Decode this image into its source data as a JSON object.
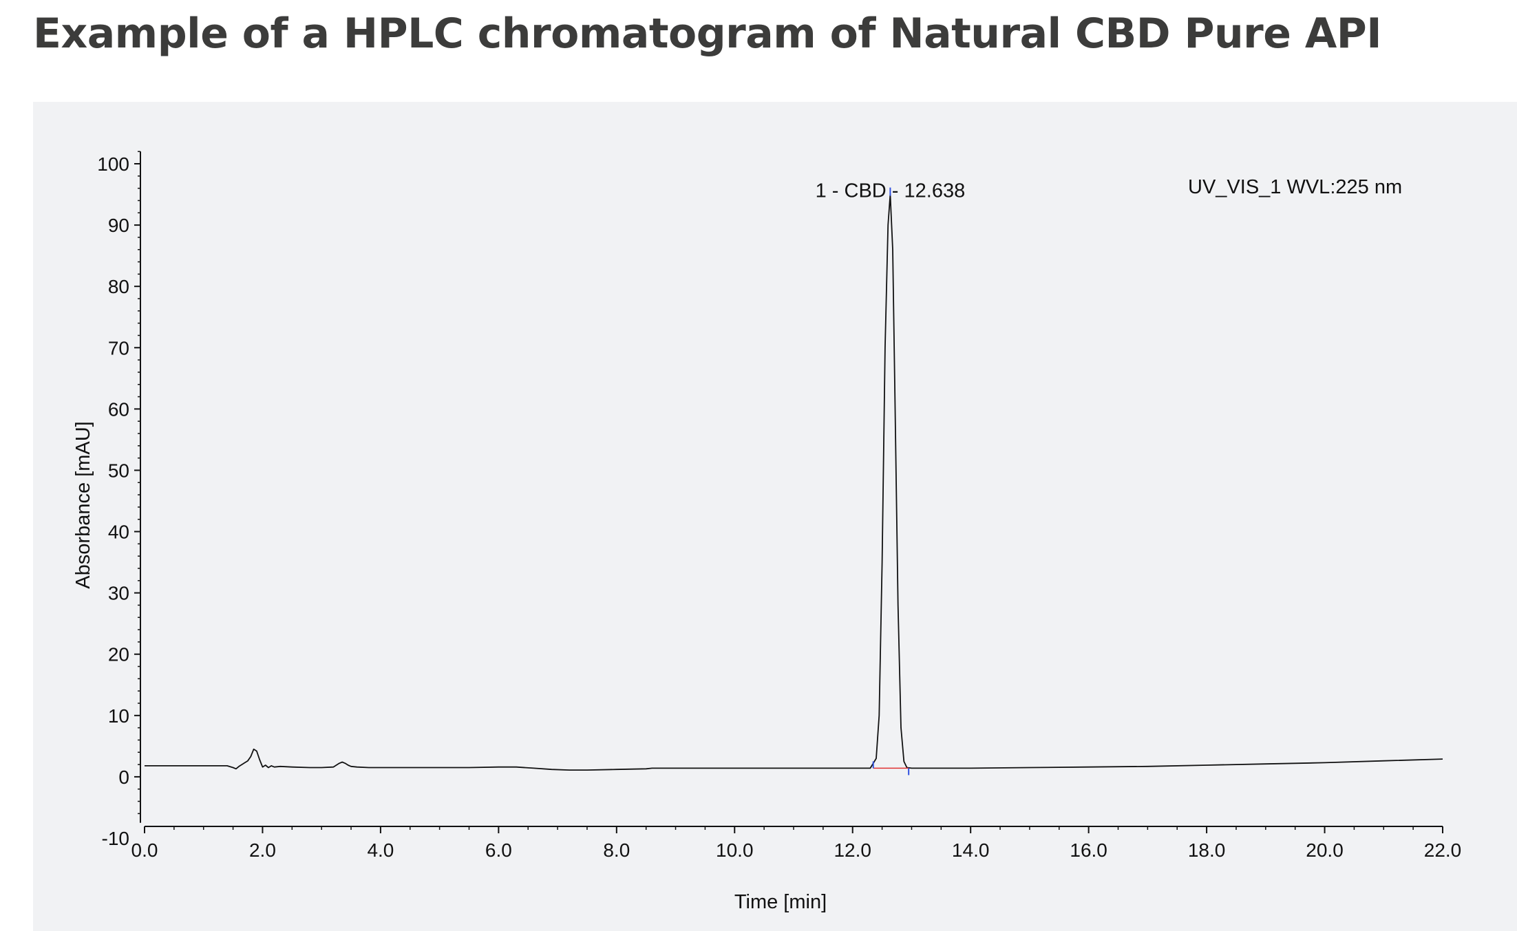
{
  "page": {
    "title": "Example of a HPLC chromatogram of Natural CBD Pure API"
  },
  "chart_data": {
    "type": "line",
    "title": "Example of a HPLC chromatogram of Natural CBD Pure API",
    "xlabel": "Time [min]",
    "ylabel": "Absorbance [mAU]",
    "xlim": [
      0,
      22
    ],
    "ylim": [
      -10,
      100
    ],
    "x_ticks": [
      "0.0",
      "2.0",
      "4.0",
      "6.0",
      "8.0",
      "10.0",
      "12.0",
      "14.0",
      "16.0",
      "18.0",
      "20.0",
      "22.0"
    ],
    "y_ticks": [
      "-10",
      "0",
      "10",
      "20",
      "30",
      "40",
      "50",
      "60",
      "70",
      "80",
      "90",
      "100"
    ],
    "grid": false,
    "channel_label": "UV_VIS_1 WVL:225 nm",
    "peaks": [
      {
        "number": 1,
        "name": "CBD",
        "retention_time": 12.638,
        "label": "1 - CBD - 12.638",
        "height": 95,
        "start": 12.35,
        "end": 12.95
      }
    ],
    "series": [
      {
        "x": [
          0.0,
          0.5,
          1.0,
          1.4,
          1.5,
          1.55,
          1.6,
          1.65,
          1.7,
          1.75,
          1.8,
          1.85,
          1.9,
          1.95,
          2.0,
          2.05,
          2.1,
          2.15,
          2.2,
          2.3,
          2.5,
          2.8,
          3.0,
          3.2,
          3.25,
          3.3,
          3.35,
          3.4,
          3.45,
          3.5,
          3.6,
          3.8,
          4.0,
          4.5,
          5.0,
          5.5,
          6.0,
          6.3,
          6.6,
          6.9,
          7.2,
          7.5,
          8.0,
          8.5,
          8.6,
          9.0,
          9.5,
          10.0,
          10.5,
          11.0,
          11.5,
          12.0,
          12.3,
          12.4,
          12.45,
          12.5,
          12.55,
          12.6,
          12.638,
          12.68,
          12.72,
          12.77,
          12.82,
          12.87,
          12.92,
          13.0,
          13.5,
          14.0,
          15.0,
          16.0,
          17.0,
          18.0,
          19.0,
          20.0,
          21.0,
          22.0
        ],
        "y": [
          1.8,
          1.8,
          1.8,
          1.8,
          1.5,
          1.3,
          1.7,
          2.0,
          2.3,
          2.6,
          3.3,
          4.5,
          4.2,
          2.8,
          1.6,
          1.9,
          1.5,
          1.8,
          1.6,
          1.7,
          1.6,
          1.5,
          1.5,
          1.6,
          1.9,
          2.2,
          2.4,
          2.2,
          1.9,
          1.7,
          1.6,
          1.5,
          1.5,
          1.5,
          1.5,
          1.5,
          1.6,
          1.6,
          1.4,
          1.2,
          1.1,
          1.1,
          1.2,
          1.3,
          1.4,
          1.4,
          1.4,
          1.4,
          1.4,
          1.4,
          1.4,
          1.4,
          1.4,
          3.0,
          10.0,
          35.0,
          70.0,
          90.0,
          95.0,
          86.0,
          60.0,
          28.0,
          8.0,
          2.5,
          1.5,
          1.4,
          1.4,
          1.4,
          1.5,
          1.6,
          1.7,
          1.9,
          2.1,
          2.3,
          2.6,
          2.9
        ]
      }
    ],
    "colors": {
      "line": "#111111",
      "baseline": "#e03030",
      "peak_markers": "#3050e0",
      "panel_background": "#f1f2f4",
      "title": "#3c3c3b"
    }
  }
}
